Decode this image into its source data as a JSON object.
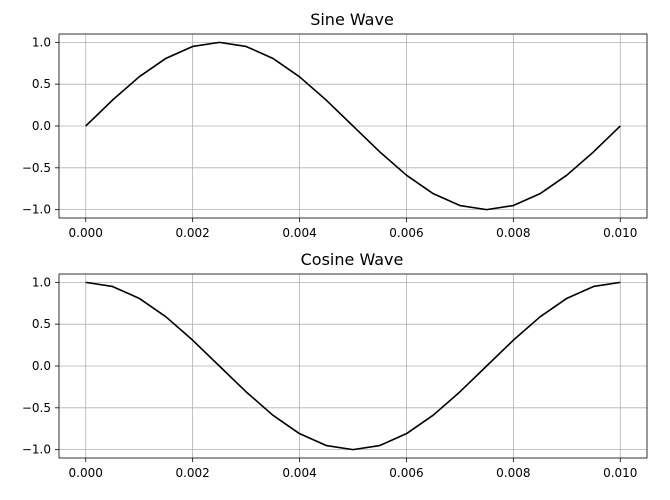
{
  "chart_data": [
    {
      "type": "line",
      "title": "Sine Wave",
      "xlabel": "",
      "ylabel": "",
      "xlim": [
        -0.0005,
        0.0105
      ],
      "ylim": [
        -1.1,
        1.1
      ],
      "xticks": [
        0.0,
        0.002,
        0.004,
        0.006,
        0.008,
        0.01
      ],
      "xtick_labels": [
        "0.000",
        "0.002",
        "0.004",
        "0.006",
        "0.008",
        "0.010"
      ],
      "yticks": [
        1.0,
        0.5,
        0.0,
        -0.5,
        -1.0
      ],
      "ytick_labels": [
        "1.0",
        "0.5",
        "0.0",
        "−0.5",
        "−1.0"
      ],
      "grid": true,
      "series": [
        {
          "color": "#000000",
          "x": [
            0.0,
            0.0005,
            0.001,
            0.0015,
            0.002,
            0.0025,
            0.003,
            0.0035,
            0.004,
            0.0045,
            0.005,
            0.0055,
            0.006,
            0.0065,
            0.007,
            0.0075,
            0.008,
            0.0085,
            0.009,
            0.0095,
            0.01
          ],
          "y": [
            0.0,
            0.309,
            0.588,
            0.809,
            0.951,
            1.0,
            0.951,
            0.809,
            0.588,
            0.309,
            0.0,
            -0.309,
            -0.588,
            -0.809,
            -0.951,
            -1.0,
            -0.951,
            -0.809,
            -0.588,
            -0.309,
            0.0
          ]
        }
      ]
    },
    {
      "type": "line",
      "title": "Cosine Wave",
      "xlabel": "",
      "ylabel": "",
      "xlim": [
        -0.0005,
        0.0105
      ],
      "ylim": [
        -1.1,
        1.1
      ],
      "xticks": [
        0.0,
        0.002,
        0.004,
        0.006,
        0.008,
        0.01
      ],
      "xtick_labels": [
        "0.000",
        "0.002",
        "0.004",
        "0.006",
        "0.008",
        "0.010"
      ],
      "yticks": [
        1.0,
        0.5,
        0.0,
        -0.5,
        -1.0
      ],
      "ytick_labels": [
        "1.0",
        "0.5",
        "0.0",
        "−0.5",
        "−1.0"
      ],
      "grid": true,
      "series": [
        {
          "color": "#000000",
          "x": [
            0.0,
            0.0005,
            0.001,
            0.0015,
            0.002,
            0.0025,
            0.003,
            0.0035,
            0.004,
            0.0045,
            0.005,
            0.0055,
            0.006,
            0.0065,
            0.007,
            0.0075,
            0.008,
            0.0085,
            0.009,
            0.0095,
            0.01
          ],
          "y": [
            1.0,
            0.951,
            0.809,
            0.588,
            0.309,
            0.0,
            -0.309,
            -0.588,
            -0.809,
            -0.951,
            -1.0,
            -0.951,
            -0.809,
            -0.588,
            -0.309,
            0.0,
            0.309,
            0.588,
            0.809,
            0.951,
            1.0
          ]
        }
      ]
    }
  ]
}
